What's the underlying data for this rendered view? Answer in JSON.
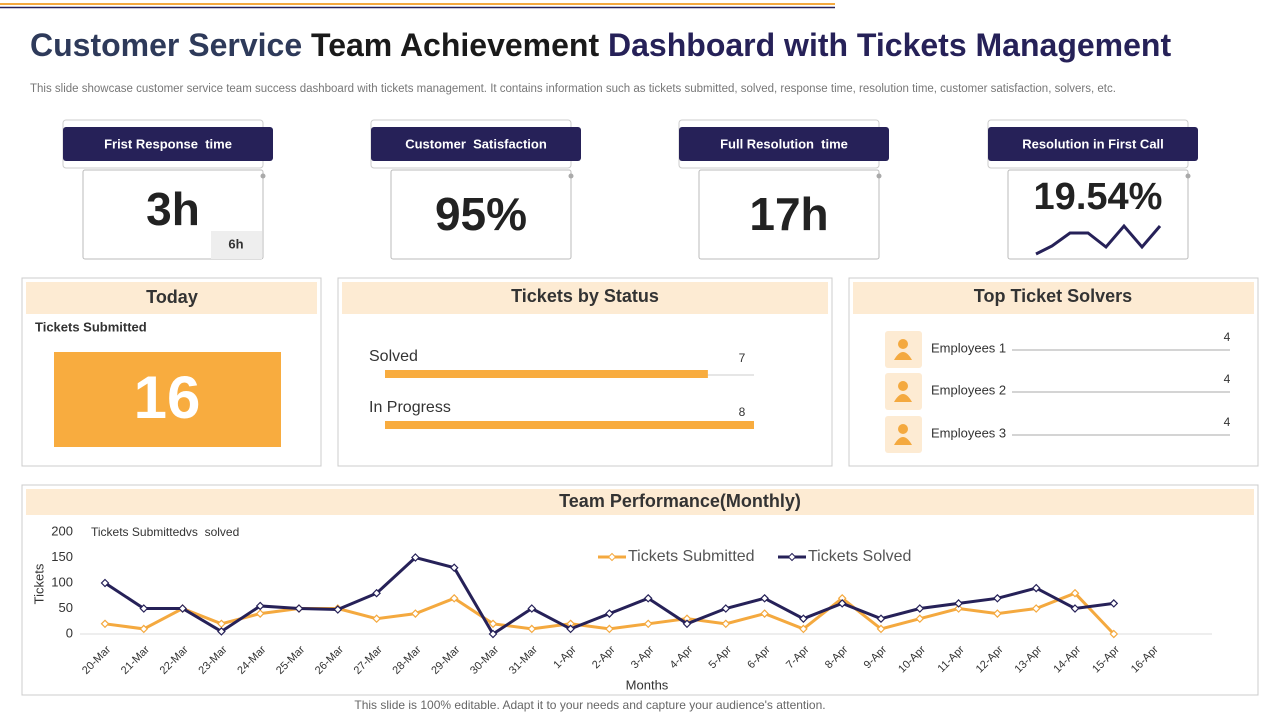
{
  "header": {
    "title": [
      "Customer Service",
      "Team Achievement",
      "Dashboard with Tickets Management"
    ],
    "description": "This slide showcase customer service team success dashboard with tickets management. It contains information such as tickets submitted, solved, response time, resolution time, customer satisfaction, solvers, etc."
  },
  "kpis": [
    {
      "label": "Frist Response  time",
      "value": "3h",
      "sub": "6h"
    },
    {
      "label": "Customer  Satisfaction",
      "value": "95%"
    },
    {
      "label": "Full Resolution  time",
      "value": "17h"
    },
    {
      "label": "Resolution in First Call",
      "value": "19.54%"
    }
  ],
  "today": {
    "title": "Today",
    "label": "Tickets Submitted",
    "value": "16"
  },
  "footer": "This slide is 100% editable. Adapt it to your needs and capture your audience's attention.",
  "chart_data": [
    {
      "type": "hbar",
      "title": "Tickets by Status",
      "categories": [
        "Solved",
        "In Progress"
      ],
      "values": [
        7,
        8
      ],
      "xlim": [
        0,
        8
      ],
      "color": "#f8ac3f"
    },
    {
      "type": "hline",
      "title": "Top Ticket Solvers",
      "categories": [
        "Employees 1",
        "Employees 2",
        "Employees 3"
      ],
      "values": [
        4,
        4,
        4
      ],
      "xlim": [
        0,
        4
      ],
      "color": "#aaaaaa"
    },
    {
      "type": "line",
      "title": "Team Performance(Monthly)",
      "subtitle": "Tickets Submittedvs  solved",
      "x_label": "Months",
      "y_label": "Tickets",
      "legend": "top",
      "categories": [
        "20-Mar",
        "21-Mar",
        "22-Mar",
        "23-Mar",
        "24-Mar",
        "25-Mar",
        "26-Mar",
        "27-Mar",
        "28-Mar",
        "29-Mar",
        "30-Mar",
        "31-Mar",
        "1-Apr",
        "2-Apr",
        "3-Apr",
        "4-Apr",
        "5-Apr",
        "6-Apr",
        "7-Apr",
        "8-Apr",
        "9-Apr",
        "10-Apr",
        "11-Apr",
        "12-Apr",
        "13-Apr",
        "14-Apr",
        "15-Apr",
        "16-Apr"
      ],
      "series": [
        {
          "name": "Tickets Submitted",
          "color": "#f4a93f",
          "values": [
            20,
            10,
            50,
            20,
            40,
            50,
            50,
            30,
            40,
            70,
            20,
            10,
            20,
            10,
            20,
            30,
            20,
            40,
            10,
            70,
            10,
            30,
            50,
            40,
            50,
            80,
            0,
            null
          ]
        },
        {
          "name": "Tickets Solved",
          "color": "#262158",
          "values": [
            100,
            50,
            50,
            5,
            55,
            50,
            48,
            80,
            150,
            130,
            0,
            50,
            10,
            40,
            70,
            20,
            50,
            70,
            30,
            60,
            30,
            50,
            60,
            70,
            90,
            50,
            60,
            null
          ]
        }
      ],
      "ylim": [
        0,
        200
      ],
      "yticks": [
        0,
        50,
        100,
        150,
        200
      ]
    }
  ]
}
